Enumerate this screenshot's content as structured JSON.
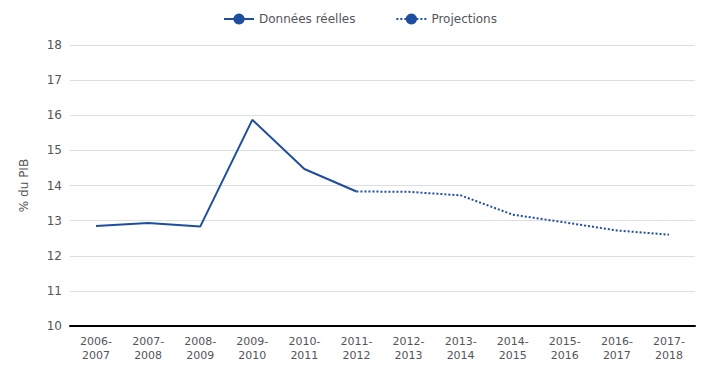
{
  "chart_data": {
    "type": "line",
    "categories": [
      "2006-\n2007",
      "2007-\n2008",
      "2008-\n2009",
      "2009-\n2010",
      "2010-\n2011",
      "2011-\n2012",
      "2012-\n2013",
      "2013-\n2014",
      "2014-\n2015",
      "2015-\n2016",
      "2016-\n2017",
      "2017-\n2018"
    ],
    "series": [
      {
        "name": "Données réelles",
        "color": "#1f4e9e",
        "line_style": "solid",
        "values": [
          12.85,
          12.93,
          12.83,
          15.87,
          14.47,
          13.83,
          null,
          null,
          null,
          null,
          null,
          null
        ]
      },
      {
        "name": "Projections",
        "color": "#1f4e9e",
        "line_style": "dotted",
        "values": [
          null,
          null,
          null,
          null,
          null,
          13.83,
          13.82,
          13.72,
          13.17,
          12.95,
          12.72,
          12.6
        ]
      }
    ],
    "ylabel": "% du PIB",
    "ylim": [
      10,
      18
    ],
    "yticks": [
      10,
      11,
      12,
      13,
      14,
      15,
      16,
      17,
      18
    ],
    "grid": true,
    "legend": "top"
  }
}
